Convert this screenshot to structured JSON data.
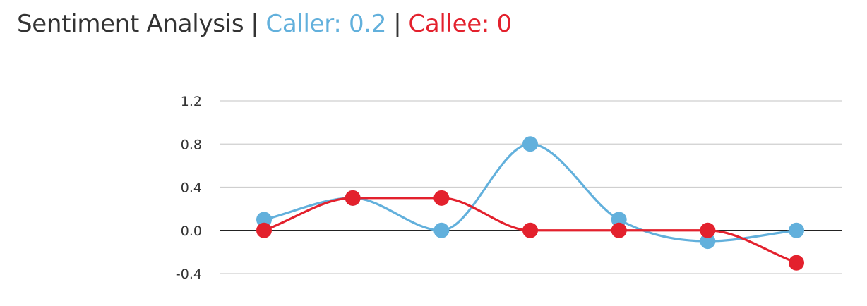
{
  "header": {
    "title": "Sentiment Analysis",
    "separator": "|",
    "caller_label": "Caller: 0.2",
    "callee_label": "Callee: 0"
  },
  "colors": {
    "title": "#333333",
    "caller": "#62b0dc",
    "callee": "#e3212d",
    "grid": "#cfcfcf",
    "zero_line": "#222222",
    "tick_text": "#333333"
  },
  "chart_data": {
    "type": "line",
    "smooth": true,
    "x": [
      1,
      2,
      3,
      4,
      5,
      6,
      7
    ],
    "ylim": [
      -0.4,
      1.2
    ],
    "yticks": [
      1.2,
      0.8,
      0.4,
      0.0,
      -0.4
    ],
    "ytick_labels": [
      "1.2",
      "0.8",
      "0.4",
      "0.0",
      "-0.4"
    ],
    "grid": true,
    "legend": "none",
    "xlabel": "",
    "ylabel": "",
    "series": [
      {
        "key": "caller",
        "color": "#62b0dc",
        "values": [
          0.1,
          0.3,
          0.0,
          0.8,
          0.1,
          -0.1,
          0.0
        ]
      },
      {
        "key": "callee",
        "color": "#e3212d",
        "values": [
          0.0,
          0.3,
          0.3,
          0.0,
          0.0,
          0.0,
          -0.3
        ]
      }
    ]
  }
}
